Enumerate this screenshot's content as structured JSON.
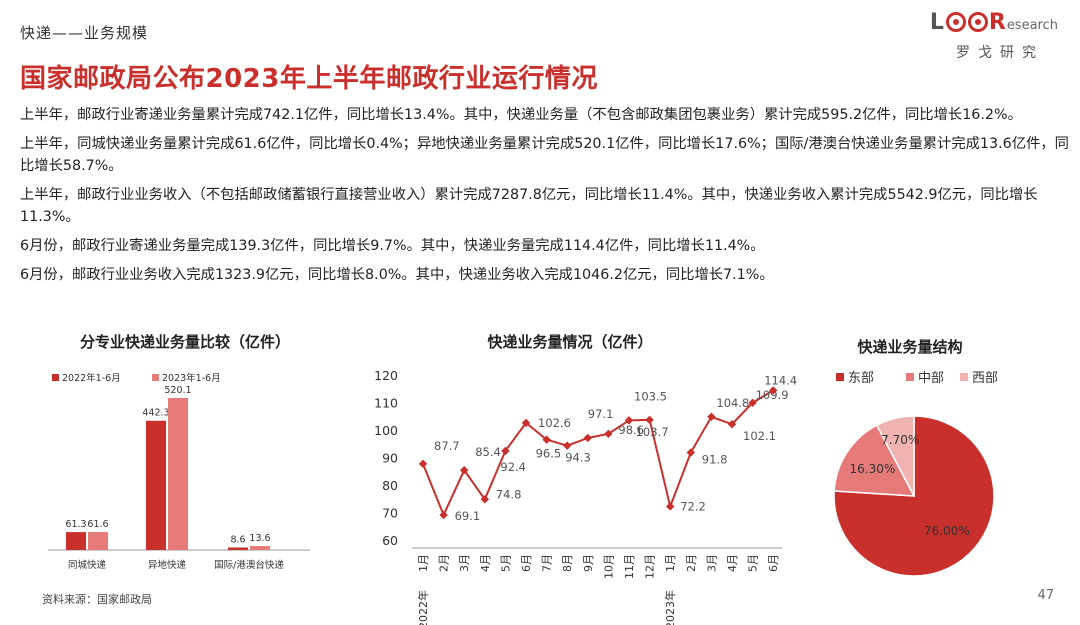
{
  "header": {
    "breadcrumb": "快递——业务规模",
    "logo_text_prefix": "L",
    "logo_text_r": "R",
    "logo_text_esearch": "esearch",
    "logo_sub": "罗戈研究",
    "title": "国家邮政局公布2023年上半年邮政行业运行情况"
  },
  "paragraphs": [
    "上半年，邮政行业寄递业务量累计完成742.1亿件，同比增长13.4%。其中，快递业务量（不包含邮政集团包裹业务）累计完成595.2亿件，同比增长16.2%。",
    "上半年，同城快递业务量累计完成61.6亿件，同比增长0.4%；异地快递业务量累计完成520.1亿件，同比增长17.6%；国际/港澳台快递业务量累计完成13.6亿件，同比增长58.7%。",
    "上半年，邮政行业业务收入（不包括邮政储蓄银行直接营业收入）累计完成7287.8亿元，同比增长11.4%。其中，快递业务收入累计完成5542.9亿元，同比增长11.3%。",
    "6月份，邮政行业寄递业务量完成139.3亿件，同比增长9.7%。其中，快递业务量完成114.4亿件，同比增长11.4%。",
    "6月份，邮政行业业务收入完成1323.9亿元，同比增长8.0%。其中，快递业务收入完成1046.2亿元，同比增长7.1%。"
  ],
  "chart_data": [
    {
      "type": "bar",
      "title": "分专业快递业务量比较（亿件）",
      "categories": [
        "同城快递",
        "异地快递",
        "国际/港澳台快递"
      ],
      "series": [
        {
          "name": "2022年1-6月",
          "values": [
            61.3,
            442.3,
            8.6
          ],
          "color": "#c9302c"
        },
        {
          "name": "2023年1-6月",
          "values": [
            61.6,
            520.1,
            13.6
          ],
          "color": "#e57a78"
        }
      ],
      "legend": "top-left",
      "grid": false
    },
    {
      "type": "line",
      "title": "快递业务量情况（亿件）",
      "x": [
        "1月",
        "2月",
        "3月",
        "4月",
        "5月",
        "6月",
        "7月",
        "8月",
        "9月",
        "10月",
        "11月",
        "12月",
        "1月",
        "2月",
        "3月",
        "4月",
        "5月",
        "6月"
      ],
      "year_labels": [
        "2022年",
        "2023年"
      ],
      "values": [
        87.7,
        69.1,
        85.4,
        74.8,
        92.4,
        102.6,
        96.5,
        94.3,
        97.1,
        98.6,
        103.5,
        103.7,
        72.2,
        91.8,
        104.8,
        102.1,
        109.9,
        114.4
      ],
      "ylim": [
        60,
        120
      ],
      "yticks": [
        60,
        70,
        80,
        90,
        100,
        110,
        120
      ],
      "color": "#c9302c",
      "grid": false
    },
    {
      "type": "pie",
      "title": "快递业务量结构",
      "labels": [
        "东部",
        "中部",
        "西部"
      ],
      "values": [
        76.0,
        16.3,
        7.7
      ],
      "value_labels": [
        "76.00%",
        "16.30%",
        "7.70%"
      ],
      "colors": [
        "#c9302c",
        "#e57a78",
        "#f0b3b1"
      ],
      "legend": "top"
    }
  ],
  "footer": {
    "source": "资料来源：国家邮政局",
    "page_number": "47"
  }
}
